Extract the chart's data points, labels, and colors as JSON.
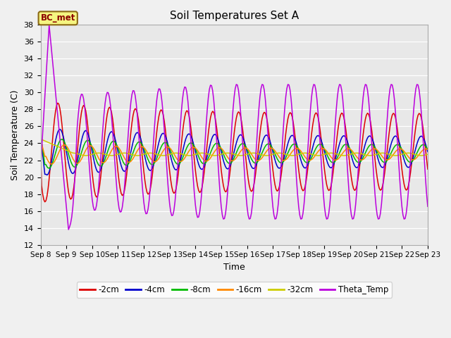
{
  "title": "Soil Temperatures Set A",
  "xlabel": "Time",
  "ylabel": "Soil Temperature (C)",
  "ylim": [
    12,
    38
  ],
  "yticks": [
    12,
    14,
    16,
    18,
    20,
    22,
    24,
    26,
    28,
    30,
    32,
    34,
    36,
    38
  ],
  "annotation_text": "BC_met",
  "colors": {
    "-2cm": "#dd0000",
    "-4cm": "#0000cc",
    "-8cm": "#00bb00",
    "-16cm": "#ff8800",
    "-32cm": "#cccc00",
    "Theta_Temp": "#bb00dd"
  },
  "legend_labels": [
    "-2cm",
    "-4cm",
    "-8cm",
    "-16cm",
    "-32cm",
    "Theta_Temp"
  ],
  "fig_bg": "#f0f0f0",
  "axes_bg": "#e8e8e8"
}
